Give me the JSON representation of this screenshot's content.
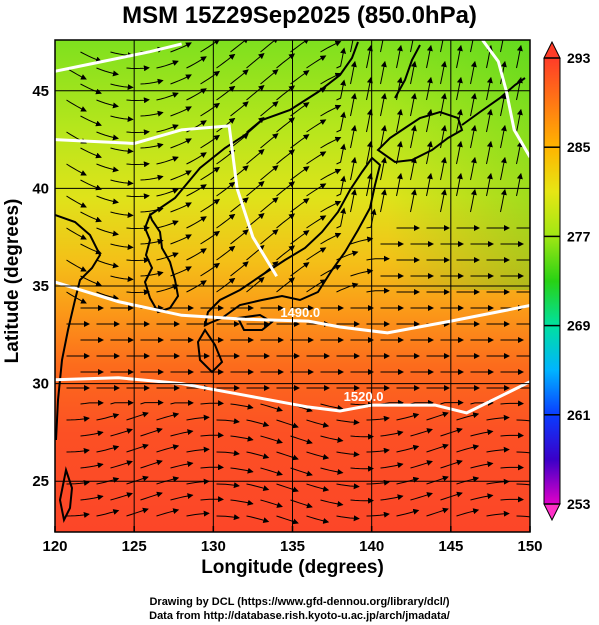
{
  "title": "MSM 15Z29Sep2025 (850.0hPa)",
  "axes": {
    "xlabel": "Longitude (degrees)",
    "ylabel": "Latitude  (degrees)",
    "x_ticks": [
      "120",
      "125",
      "130",
      "135",
      "140",
      "145",
      "150"
    ],
    "y_ticks": [
      "25",
      "30",
      "35",
      "40",
      "45"
    ],
    "xlim": [
      120,
      150
    ],
    "ylim": [
      22.4,
      47.6
    ]
  },
  "colorbar": {
    "ticks": [
      "293",
      "285",
      "277",
      "269",
      "261",
      "253"
    ],
    "range": [
      253,
      293
    ],
    "colors": [
      "#e000c8",
      "#3a00c8",
      "#0a3cff",
      "#00b4ff",
      "#00e0a0",
      "#28d214",
      "#a0e614",
      "#e6e614",
      "#ffb400",
      "#ff7814",
      "#ff3c28"
    ]
  },
  "contour_labels": [
    "1490.0",
    "1520.0"
  ],
  "credits": {
    "line1": "Drawing by DCL (https://www.gfd-dennou.org/library/dcl/)",
    "line2": "Data from http://database.rish.kyoto-u.ac.jp/arch/jmadata/"
  },
  "map_data": {
    "field": "temperature (K) with wind streamlines and geopotential height contours",
    "temperature_bands": [
      {
        "lat": 47.5,
        "value": 280.5
      },
      {
        "lat": 42.0,
        "value": 283.0
      },
      {
        "lat": 38.0,
        "value": 284.5
      },
      {
        "lat": 35.0,
        "value": 286.5
      },
      {
        "lat": 32.0,
        "value": 288.5
      },
      {
        "lat": 28.0,
        "value": 290.5
      },
      {
        "lat": 22.5,
        "value": 291.5
      }
    ],
    "contours": [
      {
        "label": "1490.0",
        "points": [
          [
            120,
            35.2
          ],
          [
            124,
            34.2
          ],
          [
            128,
            33.5
          ],
          [
            132,
            33.3
          ],
          [
            136,
            33.2
          ],
          [
            138,
            32.9
          ],
          [
            141,
            32.6
          ],
          [
            145,
            33.2
          ],
          [
            150,
            34.0
          ]
        ]
      },
      {
        "label": "1520.0",
        "points": [
          [
            120,
            30.2
          ],
          [
            124,
            30.3
          ],
          [
            128,
            30.0
          ],
          [
            132,
            29.4
          ],
          [
            136,
            28.8
          ],
          [
            138,
            28.6
          ],
          [
            140,
            28.9
          ],
          [
            144,
            28.9
          ],
          [
            146,
            28.5
          ],
          [
            148,
            29.3
          ],
          [
            150,
            30.1
          ]
        ]
      },
      {
        "label": "",
        "points": [
          [
            120,
            46.0
          ],
          [
            123,
            46.5
          ],
          [
            126,
            47.0
          ],
          [
            128,
            47.4
          ]
        ]
      },
      {
        "label": "",
        "points": [
          [
            120,
            42.5
          ],
          [
            125,
            42.3
          ],
          [
            128,
            43.0
          ],
          [
            131,
            43.2
          ],
          [
            131.5,
            40
          ],
          [
            132.5,
            37.5
          ],
          [
            134,
            35.5
          ]
        ]
      },
      {
        "label": "",
        "points": [
          [
            150,
            41.6
          ],
          [
            149,
            43.0
          ],
          [
            148.5,
            45.0
          ],
          [
            148,
            46.5
          ],
          [
            147,
            47.6
          ]
        ]
      }
    ]
  }
}
